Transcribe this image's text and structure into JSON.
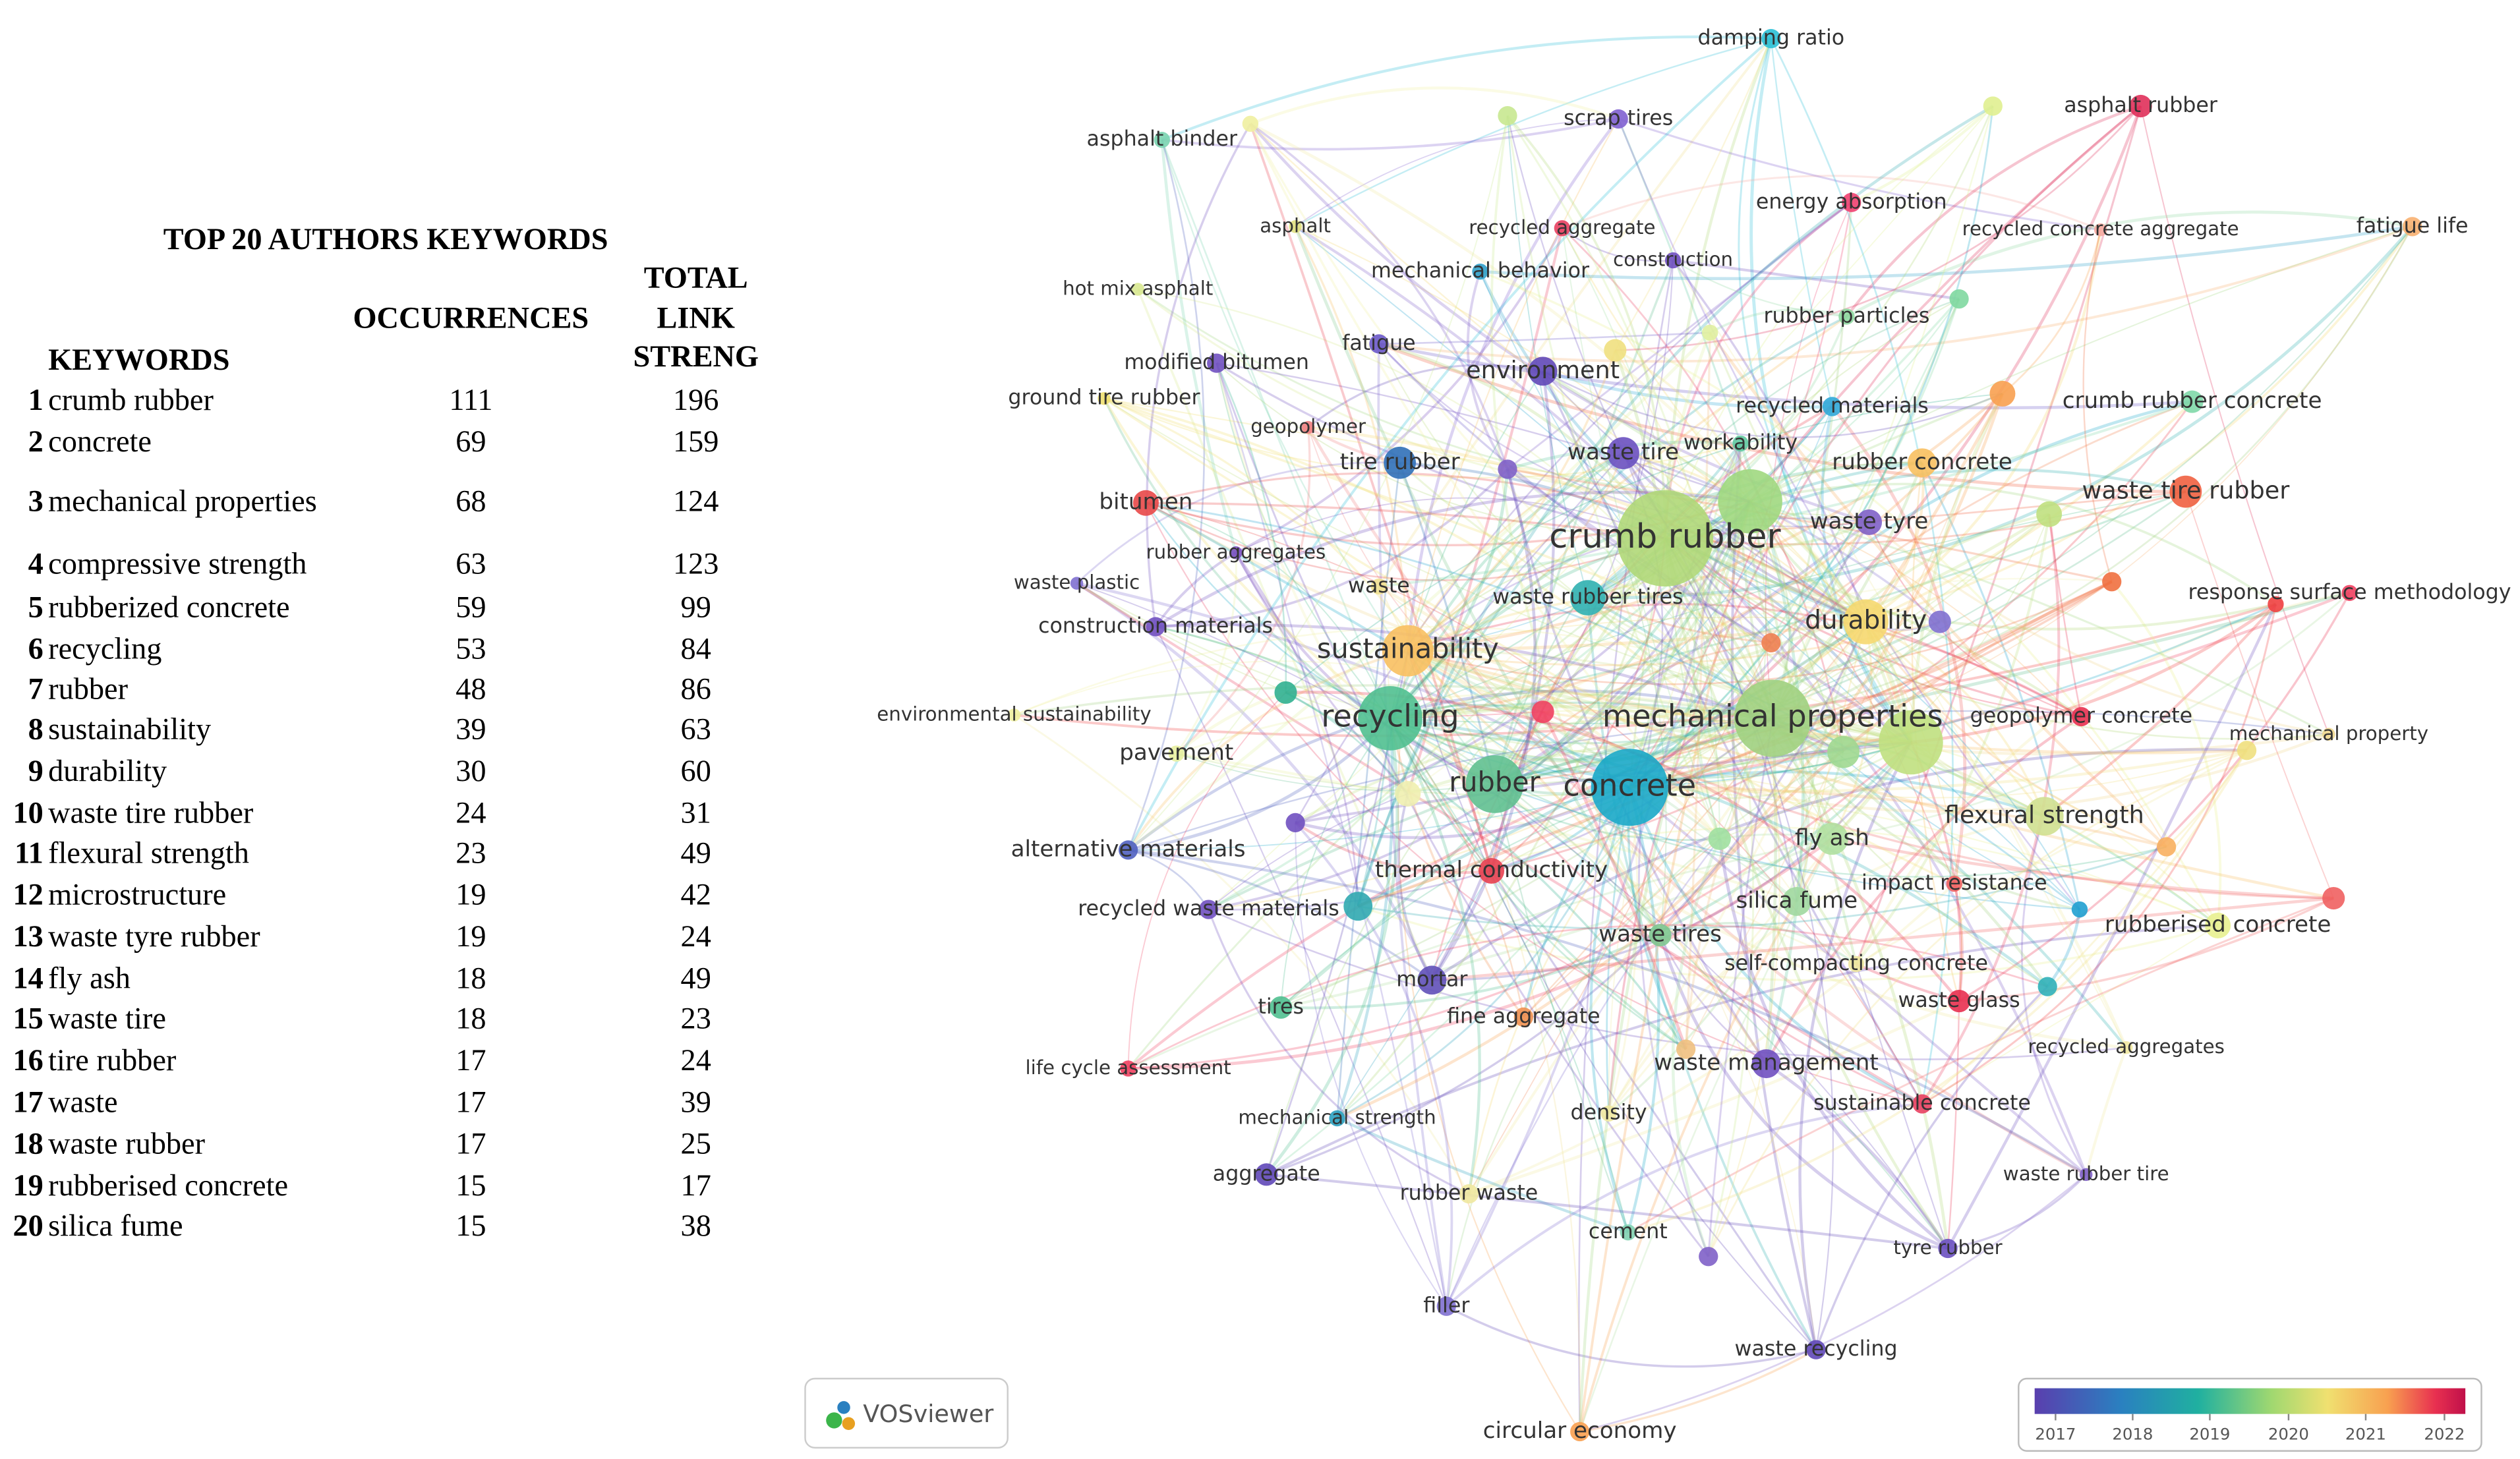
{
  "table": {
    "title": "TOP 20 AUTHORS  KEYWORDS",
    "headers": {
      "keyword": "KEYWORDS",
      "occurrences": "OCCURRENCES",
      "link_strength": [
        "TOTAL",
        "LINK",
        "STRENG"
      ]
    },
    "rows": [
      {
        "rank": 1,
        "keyword": "crumb rubber",
        "occurrences": 111,
        "link_strength": 196
      },
      {
        "rank": 2,
        "keyword": "concrete",
        "occurrences": 69,
        "link_strength": 159
      },
      {
        "rank": 3,
        "keyword": "mechanical properties",
        "occurrences": 68,
        "link_strength": 124
      },
      {
        "rank": 4,
        "keyword": "compressive strength",
        "occurrences": 63,
        "link_strength": 123
      },
      {
        "rank": 5,
        "keyword": "rubberized concrete",
        "occurrences": 59,
        "link_strength": 99
      },
      {
        "rank": 6,
        "keyword": "recycling",
        "occurrences": 53,
        "link_strength": 84
      },
      {
        "rank": 7,
        "keyword": "rubber",
        "occurrences": 48,
        "link_strength": 86
      },
      {
        "rank": 8,
        "keyword": "sustainability",
        "occurrences": 39,
        "link_strength": 63
      },
      {
        "rank": 9,
        "keyword": "durability",
        "occurrences": 30,
        "link_strength": 60
      },
      {
        "rank": 10,
        "keyword": "waste tire rubber",
        "occurrences": 24,
        "link_strength": 31
      },
      {
        "rank": 11,
        "keyword": "flexural strength",
        "occurrences": 23,
        "link_strength": 49
      },
      {
        "rank": 12,
        "keyword": "microstructure",
        "occurrences": 19,
        "link_strength": 42
      },
      {
        "rank": 13,
        "keyword": "waste tyre rubber",
        "occurrences": 19,
        "link_strength": 24
      },
      {
        "rank": 14,
        "keyword": "fly ash",
        "occurrences": 18,
        "link_strength": 49
      },
      {
        "rank": 15,
        "keyword": "waste tire",
        "occurrences": 18,
        "link_strength": 23
      },
      {
        "rank": 16,
        "keyword": "tire rubber",
        "occurrences": 17,
        "link_strength": 24
      },
      {
        "rank": 17,
        "keyword": "waste",
        "occurrences": 17,
        "link_strength": 39
      },
      {
        "rank": 18,
        "keyword": "waste rubber",
        "occurrences": 17,
        "link_strength": 25
      },
      {
        "rank": 19,
        "keyword": "rubberised concrete",
        "occurrences": 15,
        "link_strength": 17
      },
      {
        "rank": 20,
        "keyword": "silica fume",
        "occurrences": 15,
        "link_strength": 38
      }
    ]
  },
  "network": {
    "nodes": [
      {
        "label": "damping ratio"
      },
      {
        "label": "scrap tires"
      },
      {
        "label": "asphalt rubber"
      },
      {
        "label": "asphalt binder"
      },
      {
        "label": "energy absorption"
      },
      {
        "label": "recycled aggregate"
      },
      {
        "label": "asphalt"
      },
      {
        "label": "recycled concrete aggregate"
      },
      {
        "label": "fatigue life"
      },
      {
        "label": "construction"
      },
      {
        "label": "mechanical behavior"
      },
      {
        "label": "hot mix asphalt"
      },
      {
        "label": "rubber particles"
      },
      {
        "label": "modified bitumen"
      },
      {
        "label": "fatigue"
      },
      {
        "label": "environment"
      },
      {
        "label": "ground tire rubber"
      },
      {
        "label": "recycled materials"
      },
      {
        "label": "crumb rubber concrete"
      },
      {
        "label": "geopolymer"
      },
      {
        "label": "workability"
      },
      {
        "label": "tire rubber"
      },
      {
        "label": "waste tire"
      },
      {
        "label": "rubber concrete"
      },
      {
        "label": "waste tire rubber"
      },
      {
        "label": "bitumen"
      },
      {
        "label": "crumb rubber"
      },
      {
        "label": "waste tyre"
      },
      {
        "label": "rubber aggregates"
      },
      {
        "label": "waste plastic"
      },
      {
        "label": "waste"
      },
      {
        "label": "waste rubber tires"
      },
      {
        "label": "response surface methodology"
      },
      {
        "label": "durability"
      },
      {
        "label": "construction materials"
      },
      {
        "label": "sustainability"
      },
      {
        "label": "environmental sustainability"
      },
      {
        "label": "recycling"
      },
      {
        "label": "mechanical properties"
      },
      {
        "label": "geopolymer concrete"
      },
      {
        "label": "mechanical property"
      },
      {
        "label": "pavement"
      },
      {
        "label": "rubber"
      },
      {
        "label": "concrete"
      },
      {
        "label": "flexural strength"
      },
      {
        "label": "alternative materials"
      },
      {
        "label": "fly ash"
      },
      {
        "label": "thermal conductivity"
      },
      {
        "label": "recycled waste materials"
      },
      {
        "label": "silica fume"
      },
      {
        "label": "impact resistance"
      },
      {
        "label": "rubberised concrete"
      },
      {
        "label": "waste tires"
      },
      {
        "label": "self-compacting concrete"
      },
      {
        "label": "mortar"
      },
      {
        "label": "waste glass"
      },
      {
        "label": "tires"
      },
      {
        "label": "fine aggregate"
      },
      {
        "label": "recycled aggregates"
      },
      {
        "label": "life cycle assessment"
      },
      {
        "label": "waste management"
      },
      {
        "label": "sustainable concrete"
      },
      {
        "label": "density"
      },
      {
        "label": "mechanical strength"
      },
      {
        "label": "aggregate"
      },
      {
        "label": "waste rubber tire"
      },
      {
        "label": "rubber waste"
      },
      {
        "label": "cement"
      },
      {
        "label": "tyre rubber"
      },
      {
        "label": "filler"
      },
      {
        "label": "waste recycling"
      },
      {
        "label": "circular economy"
      }
    ]
  },
  "legend": {
    "ticks": [
      2017,
      2018,
      2019,
      2020,
      2021,
      2022
    ]
  },
  "logo": "VOSviewer"
}
